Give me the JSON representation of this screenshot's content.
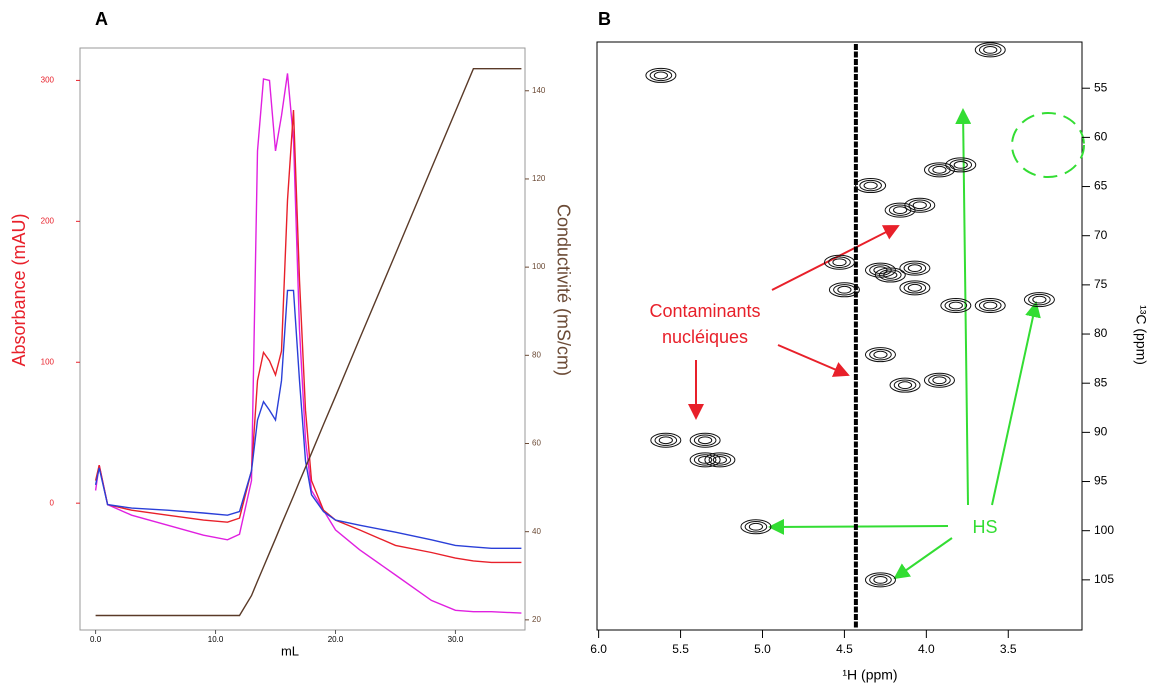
{
  "chart_data": [
    {
      "type": "line",
      "title": "A",
      "xlabel": "mL",
      "ylabel": "Absorbance (mAU)",
      "y2label": "Conductivité (mS/cm)",
      "x": [
        0,
        0.3,
        1,
        3,
        6,
        9,
        11,
        12,
        13,
        13.5,
        14,
        14.5,
        15,
        15.5,
        16,
        16.5,
        17,
        17.5,
        18,
        19,
        20,
        22,
        25,
        28,
        30,
        31.5,
        33,
        35.5
      ],
      "xlim": [
        -1.3,
        35.8
      ],
      "xticks": [
        {
          "value": 0,
          "label": "0.0"
        },
        {
          "value": 10,
          "label": "10.0"
        },
        {
          "value": 20,
          "label": "20.0"
        },
        {
          "value": 30,
          "label": "30.0"
        }
      ],
      "ylim": [
        -90,
        323
      ],
      "yticks": [
        0,
        100,
        200,
        300
      ],
      "ycolor": "#e8202a",
      "y2lim": [
        17.7,
        149.7
      ],
      "y2ticks": [
        20,
        40,
        60,
        80,
        100,
        120,
        140
      ],
      "y2color": "#6b4a35",
      "series": [
        {
          "color": "#e020e0",
          "values": [
            9,
            27,
            -1,
            -8.5,
            -15.6,
            -22.7,
            -26,
            -22,
            16,
            250,
            301,
            300,
            250,
            275,
            305,
            258,
            123,
            45,
            9,
            -5,
            -19,
            -33,
            -51,
            -69,
            -76,
            -77,
            -77,
            -78
          ]
        },
        {
          "color": "#e8202a",
          "values": [
            16,
            27,
            -1,
            -5,
            -8.5,
            -12,
            -13.5,
            -10.6,
            23,
            87,
            107,
            101,
            91,
            108,
            215,
            279,
            158,
            66,
            16,
            -5,
            -12,
            -19,
            -30,
            -35,
            -39,
            -41,
            -42,
            -42
          ]
        },
        {
          "color": "#2a3fd8",
          "values": [
            13,
            25,
            -1,
            -3.5,
            -5,
            -7,
            -8.5,
            -6,
            23,
            59,
            72,
            66,
            59,
            87,
            151,
            151,
            87,
            30,
            6,
            -6,
            -12,
            -15.6,
            -20.6,
            -26,
            -30,
            -31,
            -32,
            -32
          ]
        },
        {
          "color": "#5a3a28",
          "axis": "y2",
          "values": [
            21,
            21,
            21,
            21,
            21,
            21,
            21,
            21,
            25.5,
            28.8,
            32,
            35.2,
            38.4,
            41.7,
            44.9,
            48.1,
            51.4,
            54.6,
            57.8,
            64.3,
            70.7,
            83.7,
            103,
            122.4,
            135.3,
            145,
            145,
            145
          ]
        }
      ]
    },
    {
      "type": "contour",
      "title": "B",
      "xlabel": "¹H (ppm)",
      "ylabel": "¹³C (ppm)",
      "xlim": [
        6.01,
        3.05
      ],
      "xticks": [
        {
          "value": 6,
          "label": "6.0"
        },
        5.5,
        {
          "value": 5,
          "label": "5.0"
        },
        4.5,
        {
          "value": 4,
          "label": "4.0"
        },
        3.5
      ],
      "ylim": [
        110.1,
        50.3
      ],
      "yticks": [
        55,
        60,
        65,
        70,
        75,
        80,
        85,
        90,
        95,
        100,
        105
      ],
      "residual_signal_x": 4.43,
      "peaks": {
        "x": [
          3.92,
          3.79,
          4.04,
          4.34,
          4.16,
          4.53,
          4.28,
          4.07,
          4.5,
          4.22,
          4.07,
          3.82,
          3.61,
          4.28,
          4.13,
          3.92,
          5.59,
          5.35,
          5.35,
          5.26,
          4.28,
          5.04,
          3.31,
          3.61,
          5.62
        ],
        "y": [
          63.3,
          62.8,
          66.9,
          64.9,
          67.4,
          72.7,
          73.5,
          73.3,
          75.5,
          74,
          75.3,
          77.1,
          77.1,
          82.1,
          85.2,
          84.7,
          90.8,
          90.8,
          92.8,
          92.8,
          105,
          99.6,
          76.5,
          51.1,
          53.7
        ]
      },
      "annotations": [
        "Contaminants",
        "nucléiques",
        "HS"
      ]
    }
  ]
}
